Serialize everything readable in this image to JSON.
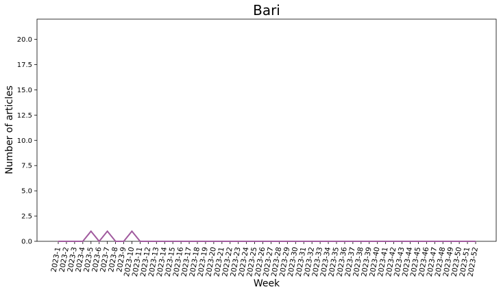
{
  "chart_data": {
    "type": "line",
    "title": "Bari",
    "xlabel": "Week",
    "ylabel": "Number of articles",
    "ylim": [
      0,
      22
    ],
    "yticks": [
      0.0,
      2.5,
      5.0,
      7.5,
      10.0,
      12.5,
      15.0,
      17.5,
      20.0
    ],
    "ytick_labels": [
      "0.0",
      "2.5",
      "5.0",
      "7.5",
      "10.0",
      "12.5",
      "15.0",
      "17.5",
      "20.0"
    ],
    "grid": false,
    "categories": [
      "2023-1",
      "2023-2",
      "2023-3",
      "2023-4",
      "2023-5",
      "2023-6",
      "2023-7",
      "2023-8",
      "2023-9",
      "2023-10",
      "2023-11",
      "2023-12",
      "2023-13",
      "2023-14",
      "2023-15",
      "2023-16",
      "2023-17",
      "2023-18",
      "2023-19",
      "2023-20",
      "2023-21",
      "2023-22",
      "2023-23",
      "2023-24",
      "2023-25",
      "2023-26",
      "2023-27",
      "2023-28",
      "2023-29",
      "2023-30",
      "2023-31",
      "2023-32",
      "2023-33",
      "2023-34",
      "2023-35",
      "2023-36",
      "2023-37",
      "2023-38",
      "2023-39",
      "2023-40",
      "2023-41",
      "2023-42",
      "2023-43",
      "2023-44",
      "2023-45",
      "2023-46",
      "2023-47",
      "2023-48",
      "2023-49",
      "2023-50",
      "2023-51",
      "2023-52"
    ],
    "series": [
      {
        "color": "#a05a9e",
        "values": [
          0,
          0,
          0,
          0,
          1,
          0,
          1,
          0,
          0,
          1,
          0,
          0,
          0,
          0,
          0,
          0,
          0,
          0,
          0,
          0,
          0,
          0,
          0,
          0,
          0,
          0,
          0,
          0,
          0,
          0,
          0,
          0,
          0,
          0,
          0,
          0,
          0,
          0,
          0,
          0,
          0,
          0,
          0,
          0,
          0,
          0,
          0,
          0,
          0,
          0,
          0,
          0
        ]
      }
    ]
  }
}
